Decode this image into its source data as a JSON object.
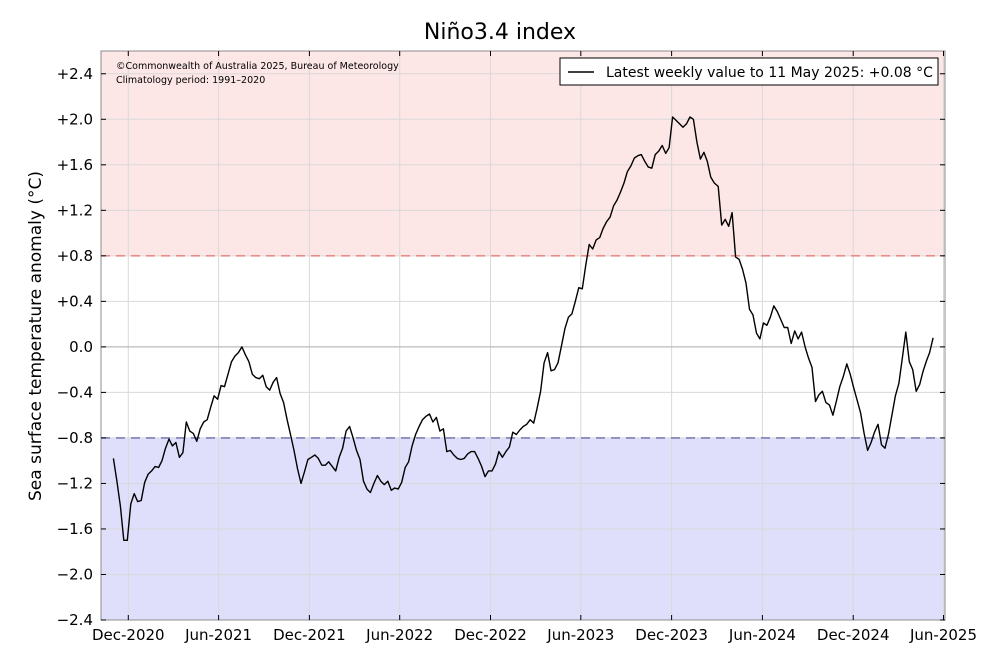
{
  "chart_data": {
    "type": "line",
    "title": "Niño3.4 index",
    "ylabel": "Sea surface temperature anomaly (°C)",
    "xlabel": "",
    "ylim": [
      -2.4,
      2.6
    ],
    "y_ticks": [
      2.4,
      2.0,
      1.6,
      1.2,
      0.8,
      0.4,
      0.0,
      -0.4,
      -0.8,
      -1.2,
      -1.6,
      -2.0,
      -2.4
    ],
    "y_tick_labels": [
      "+2.4",
      "+2.0",
      "+1.6",
      "+1.2",
      "+0.8",
      "+0.4",
      "0.0",
      "−0.4",
      "−0.8",
      "−1.2",
      "−1.6",
      "−2.0",
      "−2.4"
    ],
    "x_ticks": [
      "2020-12-01",
      "2021-06-01",
      "2021-12-01",
      "2022-06-01",
      "2022-12-01",
      "2023-06-01",
      "2023-12-01",
      "2024-06-01",
      "2024-12-01",
      "2025-06-01"
    ],
    "x_tick_labels": [
      "Dec-2020",
      "Jun-2021",
      "Dec-2021",
      "Jun-2022",
      "Dec-2022",
      "Jun-2023",
      "Dec-2023",
      "Jun-2024",
      "Dec-2024",
      "Jun-2025"
    ],
    "xlim": [
      "2020-10-07",
      "2025-06-04"
    ],
    "thresholds": [
      {
        "value": 0.8,
        "style": "dashed",
        "color": "#e8706e"
      },
      {
        "value": -0.8,
        "style": "dashed",
        "color": "#6c6aad"
      }
    ],
    "zones": [
      {
        "from": 0.8,
        "to": 2.6,
        "color": "#fde6e6"
      },
      {
        "from": -2.4,
        "to": -0.8,
        "color": "#dfdffc"
      }
    ],
    "grid": true,
    "legend_position": "top-right",
    "legend": "Latest weekly value to 11 May 2025: +0.08 °C",
    "annotations": [
      "©Commonwealth of Australia 2025, Bureau of Meteorology",
      "Climatology period: 1991–2020"
    ],
    "series": [
      {
        "color": "#000000",
        "points": [
          [
            "2020-11-01",
            -0.98
          ],
          [
            "2020-11-08",
            -1.18
          ],
          [
            "2020-11-15",
            -1.4
          ],
          [
            "2020-11-22",
            -1.7
          ],
          [
            "2020-11-29",
            -1.7
          ],
          [
            "2020-12-06",
            -1.38
          ],
          [
            "2020-12-13",
            -1.29
          ],
          [
            "2020-12-20",
            -1.36
          ],
          [
            "2020-12-27",
            -1.35
          ],
          [
            "2021-01-03",
            -1.19
          ],
          [
            "2021-01-10",
            -1.12
          ],
          [
            "2021-01-17",
            -1.09
          ],
          [
            "2021-01-24",
            -1.05
          ],
          [
            "2021-01-31",
            -1.06
          ],
          [
            "2021-02-07",
            -1.0
          ],
          [
            "2021-02-14",
            -0.89
          ],
          [
            "2021-02-21",
            -0.81
          ],
          [
            "2021-02-28",
            -0.87
          ],
          [
            "2021-03-07",
            -0.84
          ],
          [
            "2021-03-14",
            -0.97
          ],
          [
            "2021-03-21",
            -0.93
          ],
          [
            "2021-03-28",
            -0.66
          ],
          [
            "2021-04-04",
            -0.74
          ],
          [
            "2021-04-11",
            -0.76
          ],
          [
            "2021-04-18",
            -0.83
          ],
          [
            "2021-04-25",
            -0.72
          ],
          [
            "2021-05-02",
            -0.66
          ],
          [
            "2021-05-09",
            -0.64
          ],
          [
            "2021-05-16",
            -0.53
          ],
          [
            "2021-05-23",
            -0.43
          ],
          [
            "2021-05-30",
            -0.46
          ],
          [
            "2021-06-06",
            -0.34
          ],
          [
            "2021-06-13",
            -0.35
          ],
          [
            "2021-06-20",
            -0.24
          ],
          [
            "2021-06-27",
            -0.13
          ],
          [
            "2021-07-04",
            -0.08
          ],
          [
            "2021-07-11",
            -0.05
          ],
          [
            "2021-07-18",
            0.0
          ],
          [
            "2021-07-25",
            -0.07
          ],
          [
            "2021-08-01",
            -0.13
          ],
          [
            "2021-08-08",
            -0.24
          ],
          [
            "2021-08-15",
            -0.27
          ],
          [
            "2021-08-22",
            -0.28
          ],
          [
            "2021-08-29",
            -0.25
          ],
          [
            "2021-09-05",
            -0.35
          ],
          [
            "2021-09-12",
            -0.38
          ],
          [
            "2021-09-19",
            -0.31
          ],
          [
            "2021-09-26",
            -0.27
          ],
          [
            "2021-10-03",
            -0.41
          ],
          [
            "2021-10-10",
            -0.49
          ],
          [
            "2021-10-17",
            -0.64
          ],
          [
            "2021-10-24",
            -0.77
          ],
          [
            "2021-10-31",
            -0.91
          ],
          [
            "2021-11-07",
            -1.07
          ],
          [
            "2021-11-14",
            -1.2
          ],
          [
            "2021-11-21",
            -1.1
          ],
          [
            "2021-11-28",
            -0.99
          ],
          [
            "2021-12-05",
            -0.97
          ],
          [
            "2021-12-12",
            -0.95
          ],
          [
            "2021-12-19",
            -0.98
          ],
          [
            "2021-12-26",
            -1.04
          ],
          [
            "2022-01-02",
            -1.04
          ],
          [
            "2022-01-09",
            -1.01
          ],
          [
            "2022-01-16",
            -1.05
          ],
          [
            "2022-01-23",
            -1.09
          ],
          [
            "2022-01-30",
            -0.97
          ],
          [
            "2022-02-06",
            -0.89
          ],
          [
            "2022-02-13",
            -0.74
          ],
          [
            "2022-02-20",
            -0.7
          ],
          [
            "2022-02-27",
            -0.8
          ],
          [
            "2022-03-06",
            -0.91
          ],
          [
            "2022-03-13",
            -0.99
          ],
          [
            "2022-03-20",
            -1.18
          ],
          [
            "2022-03-27",
            -1.25
          ],
          [
            "2022-04-03",
            -1.28
          ],
          [
            "2022-04-10",
            -1.2
          ],
          [
            "2022-04-17",
            -1.13
          ],
          [
            "2022-04-24",
            -1.18
          ],
          [
            "2022-05-01",
            -1.21
          ],
          [
            "2022-05-08",
            -1.18
          ],
          [
            "2022-05-15",
            -1.26
          ],
          [
            "2022-05-22",
            -1.24
          ],
          [
            "2022-05-29",
            -1.25
          ],
          [
            "2022-06-05",
            -1.19
          ],
          [
            "2022-06-12",
            -1.06
          ],
          [
            "2022-06-19",
            -1.01
          ],
          [
            "2022-06-26",
            -0.87
          ],
          [
            "2022-07-03",
            -0.77
          ],
          [
            "2022-07-10",
            -0.7
          ],
          [
            "2022-07-17",
            -0.64
          ],
          [
            "2022-07-24",
            -0.61
          ],
          [
            "2022-07-31",
            -0.59
          ],
          [
            "2022-08-07",
            -0.66
          ],
          [
            "2022-08-14",
            -0.62
          ],
          [
            "2022-08-21",
            -0.74
          ],
          [
            "2022-08-28",
            -0.72
          ],
          [
            "2022-09-04",
            -0.92
          ],
          [
            "2022-09-11",
            -0.91
          ],
          [
            "2022-09-18",
            -0.95
          ],
          [
            "2022-09-25",
            -0.98
          ],
          [
            "2022-10-02",
            -0.99
          ],
          [
            "2022-10-09",
            -0.98
          ],
          [
            "2022-10-16",
            -0.94
          ],
          [
            "2022-10-23",
            -0.92
          ],
          [
            "2022-10-30",
            -0.92
          ],
          [
            "2022-11-06",
            -0.98
          ],
          [
            "2022-11-13",
            -1.05
          ],
          [
            "2022-11-20",
            -1.14
          ],
          [
            "2022-11-27",
            -1.09
          ],
          [
            "2022-12-04",
            -1.09
          ],
          [
            "2022-12-11",
            -1.03
          ],
          [
            "2022-12-18",
            -0.92
          ],
          [
            "2022-12-25",
            -0.97
          ],
          [
            "2023-01-01",
            -0.92
          ],
          [
            "2023-01-08",
            -0.88
          ],
          [
            "2023-01-15",
            -0.75
          ],
          [
            "2023-01-22",
            -0.77
          ],
          [
            "2023-01-29",
            -0.73
          ],
          [
            "2023-02-05",
            -0.7
          ],
          [
            "2023-02-12",
            -0.68
          ],
          [
            "2023-02-19",
            -0.64
          ],
          [
            "2023-02-26",
            -0.67
          ],
          [
            "2023-03-05",
            -0.54
          ],
          [
            "2023-03-12",
            -0.39
          ],
          [
            "2023-03-19",
            -0.14
          ],
          [
            "2023-03-26",
            -0.05
          ],
          [
            "2023-04-02",
            -0.21
          ],
          [
            "2023-04-09",
            -0.2
          ],
          [
            "2023-04-16",
            -0.14
          ],
          [
            "2023-04-23",
            0.01
          ],
          [
            "2023-04-30",
            0.16
          ],
          [
            "2023-05-07",
            0.26
          ],
          [
            "2023-05-14",
            0.29
          ],
          [
            "2023-05-21",
            0.4
          ],
          [
            "2023-05-28",
            0.52
          ],
          [
            "2023-06-04",
            0.51
          ],
          [
            "2023-06-11",
            0.72
          ],
          [
            "2023-06-18",
            0.9
          ],
          [
            "2023-06-25",
            0.86
          ],
          [
            "2023-07-02",
            0.94
          ],
          [
            "2023-07-09",
            0.96
          ],
          [
            "2023-07-16",
            1.04
          ],
          [
            "2023-07-23",
            1.1
          ],
          [
            "2023-07-30",
            1.14
          ],
          [
            "2023-08-06",
            1.24
          ],
          [
            "2023-08-13",
            1.29
          ],
          [
            "2023-08-20",
            1.36
          ],
          [
            "2023-08-27",
            1.44
          ],
          [
            "2023-09-03",
            1.54
          ],
          [
            "2023-09-10",
            1.59
          ],
          [
            "2023-09-17",
            1.66
          ],
          [
            "2023-09-24",
            1.68
          ],
          [
            "2023-10-01",
            1.69
          ],
          [
            "2023-10-08",
            1.63
          ],
          [
            "2023-10-15",
            1.58
          ],
          [
            "2023-10-22",
            1.57
          ],
          [
            "2023-10-29",
            1.69
          ],
          [
            "2023-11-05",
            1.72
          ],
          [
            "2023-11-12",
            1.77
          ],
          [
            "2023-11-19",
            1.7
          ],
          [
            "2023-11-26",
            1.75
          ],
          [
            "2023-12-03",
            2.02
          ],
          [
            "2023-12-10",
            1.99
          ],
          [
            "2023-12-17",
            1.96
          ],
          [
            "2023-12-24",
            1.93
          ],
          [
            "2023-12-31",
            1.96
          ],
          [
            "2024-01-07",
            2.02
          ],
          [
            "2024-01-14",
            2.0
          ],
          [
            "2024-01-21",
            1.8
          ],
          [
            "2024-01-28",
            1.65
          ],
          [
            "2024-02-04",
            1.71
          ],
          [
            "2024-02-11",
            1.63
          ],
          [
            "2024-02-18",
            1.49
          ],
          [
            "2024-02-25",
            1.44
          ],
          [
            "2024-03-04",
            1.41
          ],
          [
            "2024-03-11",
            1.07
          ],
          [
            "2024-03-18",
            1.12
          ],
          [
            "2024-03-25",
            1.06
          ],
          [
            "2024-04-01",
            1.18
          ],
          [
            "2024-04-08",
            0.79
          ],
          [
            "2024-04-15",
            0.77
          ],
          [
            "2024-04-22",
            0.68
          ],
          [
            "2024-04-29",
            0.56
          ],
          [
            "2024-05-06",
            0.33
          ],
          [
            "2024-05-13",
            0.28
          ],
          [
            "2024-05-20",
            0.12
          ],
          [
            "2024-05-27",
            0.07
          ],
          [
            "2024-06-03",
            0.21
          ],
          [
            "2024-06-10",
            0.19
          ],
          [
            "2024-06-17",
            0.26
          ],
          [
            "2024-06-24",
            0.36
          ],
          [
            "2024-07-01",
            0.31
          ],
          [
            "2024-07-08",
            0.24
          ],
          [
            "2024-07-15",
            0.17
          ],
          [
            "2024-07-22",
            0.17
          ],
          [
            "2024-07-29",
            0.03
          ],
          [
            "2024-08-05",
            0.14
          ],
          [
            "2024-08-12",
            0.07
          ],
          [
            "2024-08-19",
            0.13
          ],
          [
            "2024-08-26",
            0.0
          ],
          [
            "2024-09-02",
            -0.1
          ],
          [
            "2024-09-09",
            -0.18
          ],
          [
            "2024-09-16",
            -0.48
          ],
          [
            "2024-09-23",
            -0.42
          ],
          [
            "2024-09-30",
            -0.39
          ],
          [
            "2024-10-07",
            -0.49
          ],
          [
            "2024-10-14",
            -0.51
          ],
          [
            "2024-10-21",
            -0.6
          ],
          [
            "2024-10-28",
            -0.48
          ],
          [
            "2024-11-04",
            -0.35
          ],
          [
            "2024-11-11",
            -0.26
          ],
          [
            "2024-11-18",
            -0.15
          ],
          [
            "2024-11-25",
            -0.24
          ],
          [
            "2024-12-02",
            -0.36
          ],
          [
            "2024-12-09",
            -0.47
          ],
          [
            "2024-12-16",
            -0.58
          ],
          [
            "2024-12-23",
            -0.76
          ],
          [
            "2024-12-30",
            -0.91
          ],
          [
            "2025-01-06",
            -0.84
          ],
          [
            "2025-01-13",
            -0.75
          ],
          [
            "2025-01-20",
            -0.68
          ],
          [
            "2025-01-27",
            -0.86
          ],
          [
            "2025-02-03",
            -0.89
          ],
          [
            "2025-02-10",
            -0.77
          ],
          [
            "2025-02-17",
            -0.6
          ],
          [
            "2025-02-24",
            -0.43
          ],
          [
            "2025-03-03",
            -0.32
          ],
          [
            "2025-03-10",
            -0.1
          ],
          [
            "2025-03-17",
            0.13
          ],
          [
            "2025-03-24",
            -0.13
          ],
          [
            "2025-03-31",
            -0.2
          ],
          [
            "2025-04-07",
            -0.39
          ],
          [
            "2025-04-14",
            -0.33
          ],
          [
            "2025-04-21",
            -0.21
          ],
          [
            "2025-04-28",
            -0.12
          ],
          [
            "2025-05-04",
            -0.05
          ],
          [
            "2025-05-11",
            0.08
          ]
        ]
      }
    ]
  }
}
